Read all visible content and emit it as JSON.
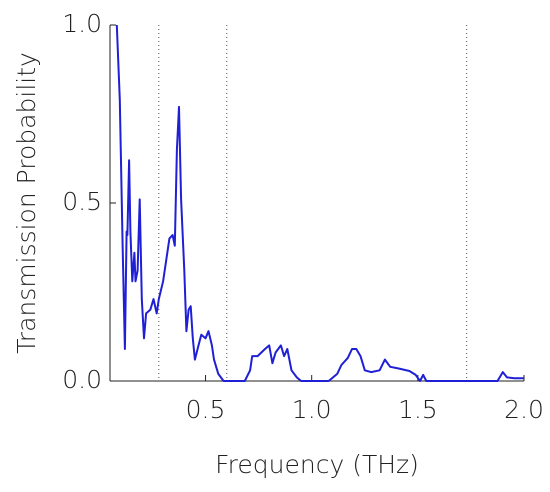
{
  "chart_data": {
    "type": "line",
    "xlabel": "Frequency (THz)",
    "ylabel": "Transmission Probability",
    "xlim": [
      0.05,
      2.0
    ],
    "ylim": [
      0,
      1.0
    ],
    "xticks": [
      0.5,
      {
        "value": 1,
        "label": "1.0"
      },
      1.5,
      {
        "value": 2,
        "label": "2.0"
      }
    ],
    "yticks": [
      {
        "value": 0,
        "label": "0.0"
      },
      0.5,
      {
        "value": 1,
        "label": "1.0"
      }
    ],
    "vlines": [
      0.28,
      0.6,
      1.73
    ],
    "series": [
      {
        "color": "#1f1fd6",
        "x": [
          0.082,
          0.096,
          0.11,
          0.12,
          0.128,
          0.132,
          0.14,
          0.146,
          0.155,
          0.165,
          0.17,
          0.18,
          0.19,
          0.2,
          0.21,
          0.22,
          0.24,
          0.255,
          0.27,
          0.28,
          0.3,
          0.33,
          0.345,
          0.355,
          0.365,
          0.375,
          0.385,
          0.4,
          0.41,
          0.42,
          0.43,
          0.44,
          0.45,
          0.467,
          0.48,
          0.5,
          0.514,
          0.53,
          0.54,
          0.56,
          0.585,
          0.685,
          0.71,
          0.72,
          0.745,
          0.78,
          0.8,
          0.815,
          0.83,
          0.855,
          0.87,
          0.885,
          0.905,
          0.93,
          0.95,
          1.08,
          1.12,
          1.14,
          1.17,
          1.19,
          1.21,
          1.23,
          1.25,
          1.28,
          1.32,
          1.345,
          1.37,
          1.41,
          1.46,
          1.49,
          1.51,
          1.525,
          1.54,
          1.875,
          1.9,
          1.92,
          1.955,
          2.0
        ],
        "values": [
          1.0,
          0.79,
          0.37,
          0.09,
          0.42,
          0.41,
          0.62,
          0.42,
          0.28,
          0.36,
          0.28,
          0.31,
          0.51,
          0.23,
          0.12,
          0.19,
          0.2,
          0.23,
          0.19,
          0.23,
          0.28,
          0.4,
          0.41,
          0.38,
          0.65,
          0.77,
          0.51,
          0.31,
          0.14,
          0.2,
          0.21,
          0.12,
          0.06,
          0.1,
          0.13,
          0.12,
          0.14,
          0.1,
          0.06,
          0.02,
          0,
          0,
          0.03,
          0.07,
          0.07,
          0.09,
          0.1,
          0.05,
          0.08,
          0.1,
          0.07,
          0.09,
          0.03,
          0.01,
          0,
          0,
          0.02,
          0.045,
          0.065,
          0.09,
          0.09,
          0.07,
          0.03,
          0.025,
          0.03,
          0.06,
          0.04,
          0.035,
          0.028,
          0.017,
          0,
          0.017,
          0,
          0,
          0.025,
          0.01,
          0.008,
          0.008
        ]
      }
    ]
  }
}
